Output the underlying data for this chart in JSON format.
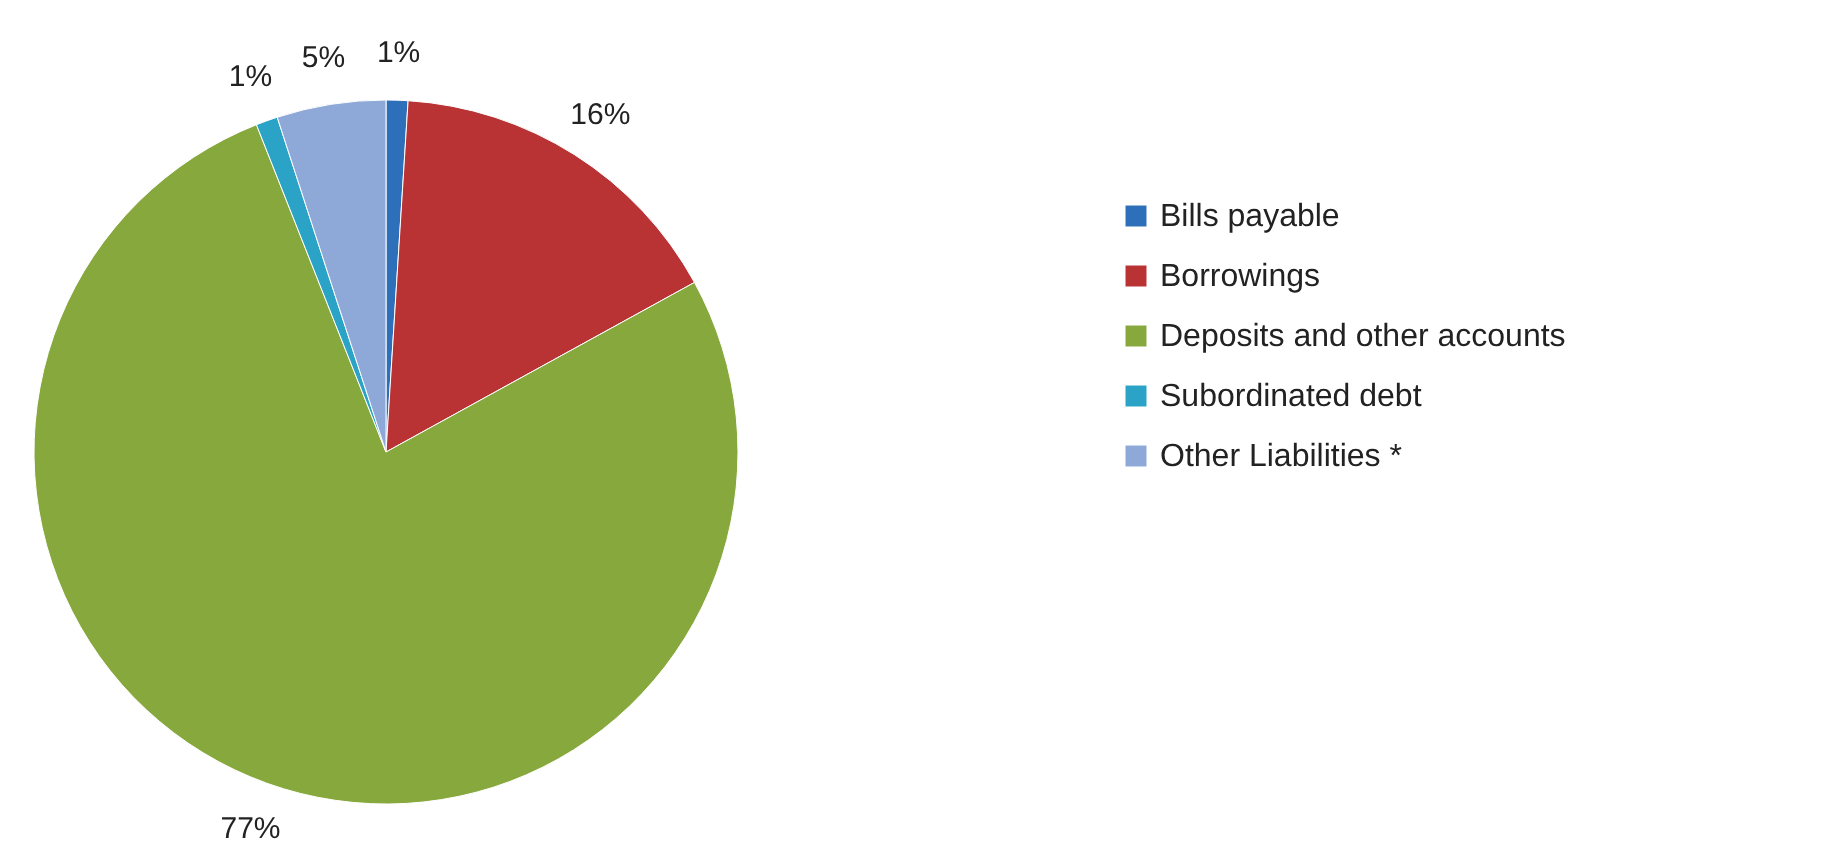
{
  "chart_data": {
    "type": "pie",
    "categories": [
      "Bills payable",
      "Borrowings",
      "Deposits and other accounts",
      "Subordinated debt",
      "Other Liabilities *"
    ],
    "values": [
      1,
      16,
      77,
      1,
      5
    ],
    "colors": [
      "#2e6fba",
      "#b93234",
      "#86a83c",
      "#2ba3c6",
      "#8ea8d8"
    ],
    "value_labels": [
      "1%",
      "16%",
      "77%",
      "1%",
      "5%"
    ],
    "legend": "right"
  }
}
